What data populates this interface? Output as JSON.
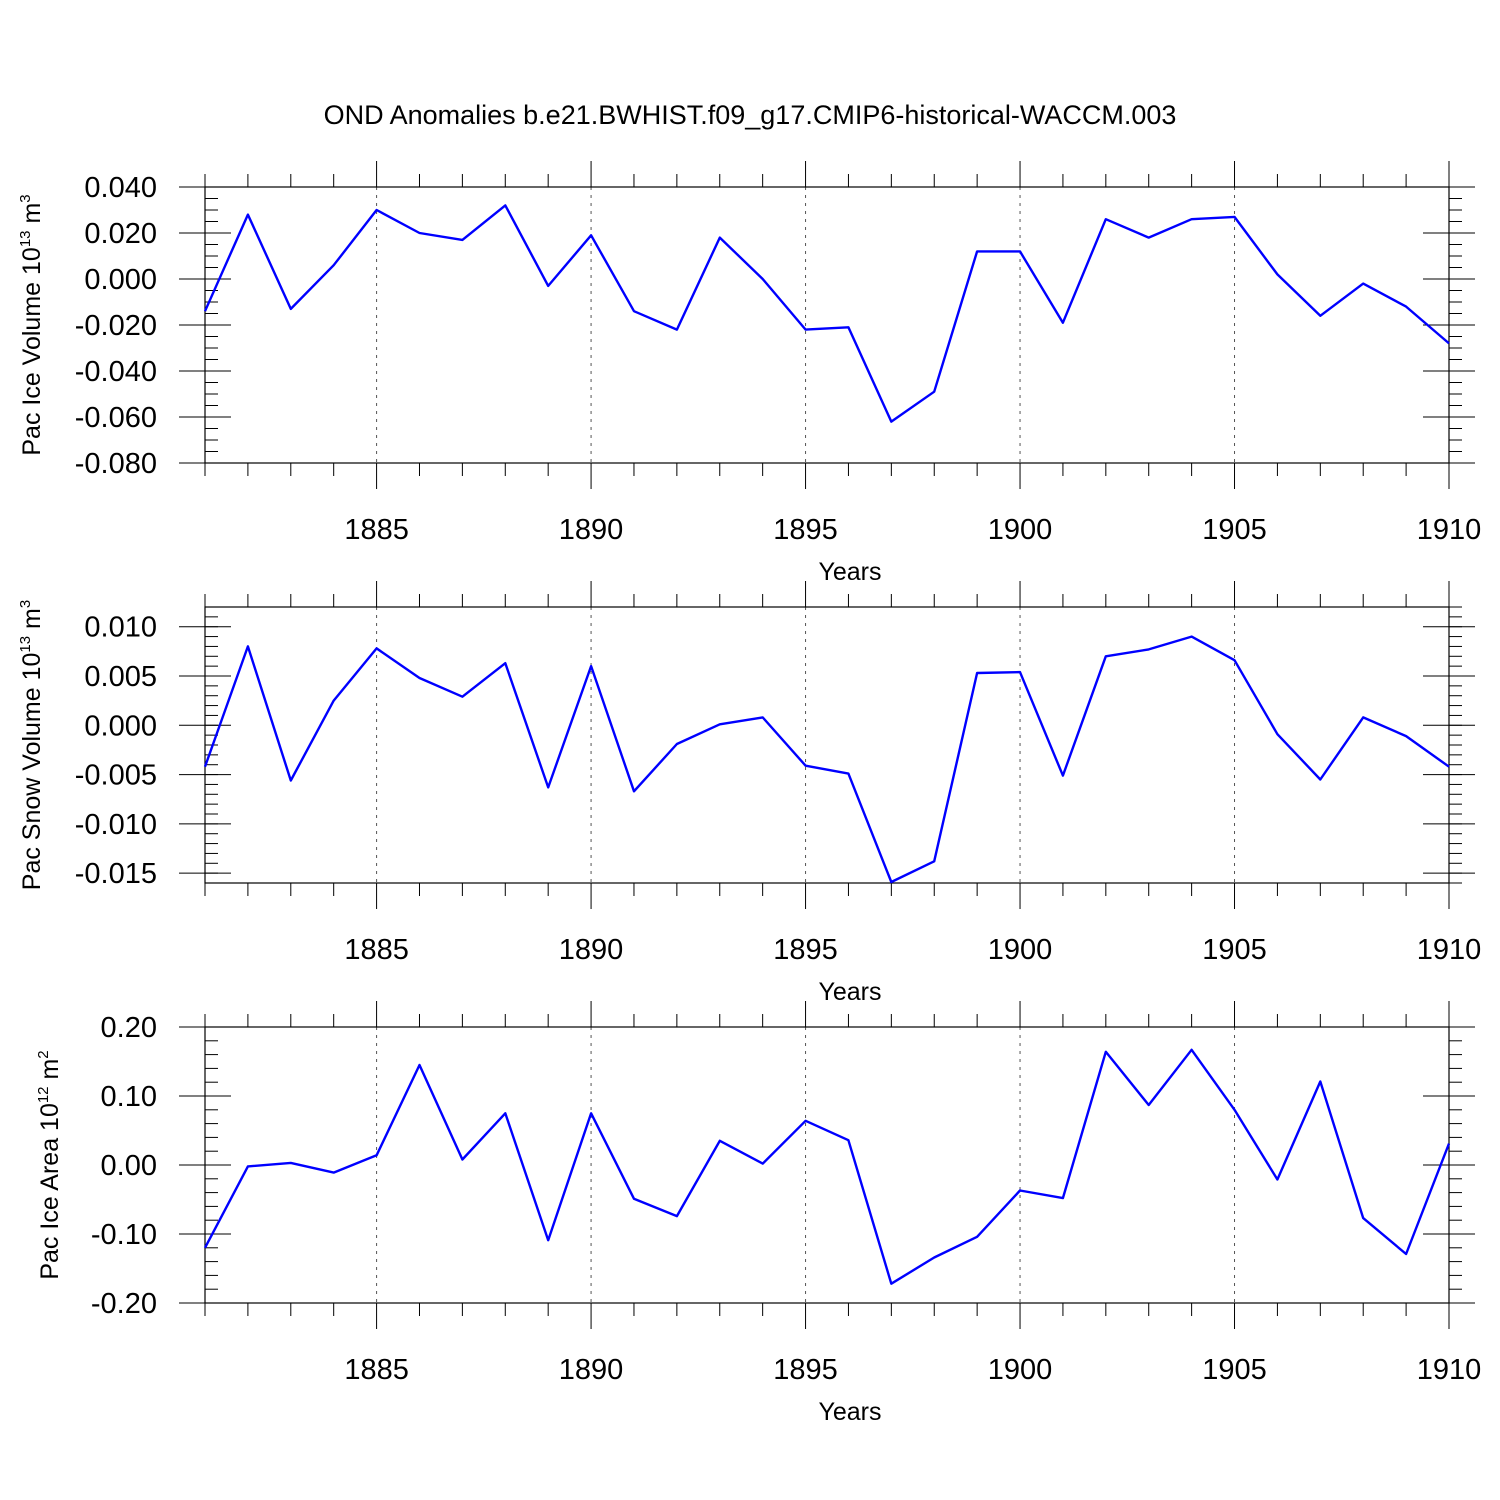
{
  "title": "OND Anomalies b.e21.BWHIST.f09_g17.CMIP6-historical-WACCM.003",
  "colors": {
    "line": "#0000ff",
    "axis": "#000000",
    "grid": "#555555"
  },
  "chart_data": [
    {
      "type": "line",
      "xlabel": "Years",
      "ylabel": {
        "text": "Pac Ice Volume 10",
        "exp": "13",
        "unit": " m",
        "unit_exp": "3"
      },
      "xlim": [
        1881,
        1910
      ],
      "ylim": [
        -0.08,
        0.04
      ],
      "xticks": [
        1885,
        1890,
        1895,
        1900,
        1905,
        1910
      ],
      "yticks": [
        "0.040",
        "0.020",
        "0.000",
        "-0.020",
        "-0.040",
        "-0.060",
        "-0.080"
      ],
      "yticks_values": [
        0.04,
        0.02,
        0.0,
        -0.02,
        -0.04,
        -0.06,
        -0.08
      ],
      "y_minor_step": 0.005,
      "grid": "dashed vertical at major x ticks",
      "x": [
        1881,
        1882,
        1883,
        1884,
        1885,
        1886,
        1887,
        1888,
        1889,
        1890,
        1891,
        1892,
        1893,
        1894,
        1895,
        1896,
        1897,
        1898,
        1899,
        1900,
        1901,
        1902,
        1903,
        1904,
        1905,
        1906,
        1907,
        1908,
        1909,
        1910
      ],
      "y": [
        -0.014,
        0.028,
        -0.013,
        0.006,
        0.03,
        0.02,
        0.017,
        0.032,
        -0.003,
        0.019,
        -0.014,
        -0.022,
        0.018,
        0.0,
        -0.022,
        -0.021,
        -0.062,
        -0.049,
        0.012,
        0.012,
        -0.019,
        0.026,
        0.018,
        0.026,
        0.027,
        0.002,
        -0.016,
        -0.002,
        -0.012,
        -0.028
      ]
    },
    {
      "type": "line",
      "xlabel": "Years",
      "ylabel": {
        "text": "Pac Snow Volume 10",
        "exp": "13",
        "unit": " m",
        "unit_exp": "3"
      },
      "xlim": [
        1881,
        1910
      ],
      "ylim": [
        -0.016,
        0.012
      ],
      "xticks": [
        1885,
        1890,
        1895,
        1900,
        1905,
        1910
      ],
      "yticks": [
        "0.010",
        "0.005",
        "0.000",
        "-0.005",
        "-0.010",
        "-0.015"
      ],
      "yticks_values": [
        0.01,
        0.005,
        0.0,
        -0.005,
        -0.01,
        -0.015
      ],
      "y_minor_step": 0.001,
      "grid": "dashed vertical at major x ticks",
      "x": [
        1881,
        1882,
        1883,
        1884,
        1885,
        1886,
        1887,
        1888,
        1889,
        1890,
        1891,
        1892,
        1893,
        1894,
        1895,
        1896,
        1897,
        1898,
        1899,
        1900,
        1901,
        1902,
        1903,
        1904,
        1905,
        1906,
        1907,
        1908,
        1909,
        1910
      ],
      "y": [
        -0.0042,
        0.008,
        -0.0056,
        0.0025,
        0.0078,
        0.0048,
        0.0029,
        0.0063,
        -0.0063,
        0.006,
        -0.0067,
        -0.0019,
        0.0001,
        0.0008,
        -0.0041,
        -0.0049,
        -0.0159,
        -0.0138,
        0.0053,
        0.0054,
        -0.0051,
        0.007,
        0.0077,
        0.009,
        0.0066,
        -0.0009,
        -0.0055,
        0.0008,
        -0.0011,
        -0.0042
      ]
    },
    {
      "type": "line",
      "xlabel": "Years",
      "ylabel": {
        "text": "Pac Ice Area 10",
        "exp": "12",
        "unit": " m",
        "unit_exp": "2"
      },
      "xlim": [
        1881,
        1910
      ],
      "ylim": [
        -0.2,
        0.2
      ],
      "xticks": [
        1885,
        1890,
        1895,
        1900,
        1905,
        1910
      ],
      "yticks": [
        "0.20",
        "0.10",
        "0.00",
        "-0.10",
        "-0.20"
      ],
      "yticks_values": [
        0.2,
        0.1,
        0.0,
        -0.1,
        -0.2
      ],
      "y_minor_step": 0.02,
      "grid": "dashed vertical at major x ticks",
      "x": [
        1881,
        1882,
        1883,
        1884,
        1885,
        1886,
        1887,
        1888,
        1889,
        1890,
        1891,
        1892,
        1893,
        1894,
        1895,
        1896,
        1897,
        1898,
        1899,
        1900,
        1901,
        1902,
        1903,
        1904,
        1905,
        1906,
        1907,
        1908,
        1909,
        1910
      ],
      "y": [
        -0.12,
        -0.002,
        0.003,
        -0.011,
        0.014,
        0.145,
        0.008,
        0.075,
        -0.109,
        0.075,
        -0.049,
        -0.074,
        0.035,
        0.002,
        0.064,
        0.036,
        -0.172,
        -0.134,
        -0.104,
        -0.037,
        -0.048,
        0.164,
        0.087,
        0.167,
        0.08,
        -0.021,
        0.121,
        -0.077,
        -0.129,
        0.031
      ]
    }
  ]
}
